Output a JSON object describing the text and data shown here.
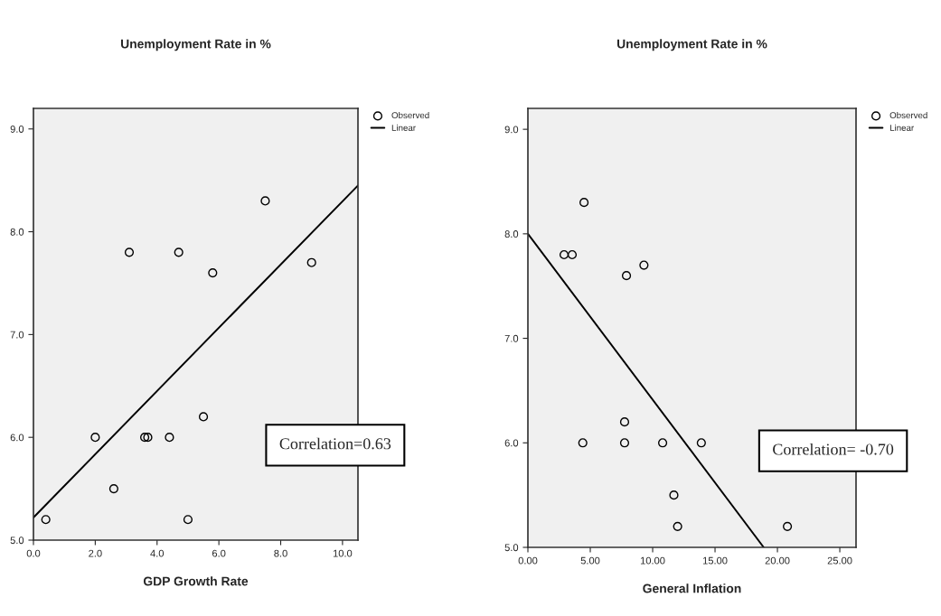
{
  "chart_data": [
    {
      "type": "scatter",
      "title": "Unemployment Rate in %",
      "xlabel": "GDP Growth Rate",
      "xlim": [
        0,
        10.5
      ],
      "xticks": [
        {
          "value": 0,
          "label": "0.0"
        },
        {
          "value": 2,
          "label": "2.0"
        },
        {
          "value": 4,
          "label": "4.0"
        },
        {
          "value": 6,
          "label": "6.0"
        },
        {
          "value": 8,
          "label": "8.0"
        },
        {
          "value": 10,
          "label": "10.0"
        }
      ],
      "ylim": [
        5,
        9.2
      ],
      "yticks": [
        {
          "value": 5,
          "label": "5.0"
        },
        {
          "value": 6,
          "label": "6.0"
        },
        {
          "value": 7,
          "label": "7.0"
        },
        {
          "value": 8,
          "label": "8.0"
        },
        {
          "value": 9,
          "label": "9.0"
        }
      ],
      "series": [
        {
          "name": "Observed",
          "type": "scatter",
          "marker": "circle",
          "color": "#000000",
          "x": [
            0.4,
            2.0,
            2.6,
            3.1,
            3.6,
            3.7,
            4.4,
            4.7,
            5.0,
            5.5,
            5.8,
            7.5,
            9.0
          ],
          "values": [
            5.2,
            6.0,
            5.5,
            7.8,
            6.0,
            6.0,
            6.0,
            7.8,
            5.2,
            6.2,
            7.6,
            8.3,
            7.7
          ]
        },
        {
          "name": "Linear",
          "type": "line",
          "color": "#000000",
          "x": [
            0,
            10.5
          ],
          "values": [
            5.22,
            8.45
          ]
        }
      ],
      "annotations": [
        "Correlation=0.63"
      ],
      "legend": "top right",
      "grid": false
    },
    {
      "type": "scatter",
      "title": "Unemployment Rate in %",
      "xlabel": "General Inflation",
      "xlim": [
        0,
        26.3
      ],
      "xticks": [
        {
          "value": 0,
          "label": "0.00"
        },
        {
          "value": 5,
          "label": "5.00"
        },
        {
          "value": 10,
          "label": "10.00"
        },
        {
          "value": 15,
          "label": "15.00"
        },
        {
          "value": 20,
          "label": "20.00"
        },
        {
          "value": 25,
          "label": "25.00"
        }
      ],
      "ylim": [
        5,
        9.2
      ],
      "yticks": [
        {
          "value": 5,
          "label": "5.0"
        },
        {
          "value": 6,
          "label": "6.0"
        },
        {
          "value": 7,
          "label": "7.0"
        },
        {
          "value": 8,
          "label": "8.0"
        },
        {
          "value": 9,
          "label": "9.0"
        }
      ],
      "series": [
        {
          "name": "Observed",
          "type": "scatter",
          "marker": "circle",
          "color": "#000000",
          "x": [
            2.9,
            3.55,
            4.5,
            7.9,
            9.3,
            4.4,
            7.75,
            7.75,
            10.8,
            13.9,
            11.7,
            12.0,
            20.8
          ],
          "values": [
            7.8,
            7.8,
            8.3,
            7.6,
            7.7,
            6.0,
            6.0,
            6.2,
            6.0,
            6.0,
            5.5,
            5.2,
            5.2
          ]
        },
        {
          "name": "Linear",
          "type": "line",
          "color": "#000000",
          "x": [
            0,
            18.9
          ],
          "values": [
            8.0,
            5.0
          ]
        }
      ],
      "annotations": [
        "Correlation= -0.70"
      ],
      "legend": "top right",
      "grid": false
    }
  ]
}
